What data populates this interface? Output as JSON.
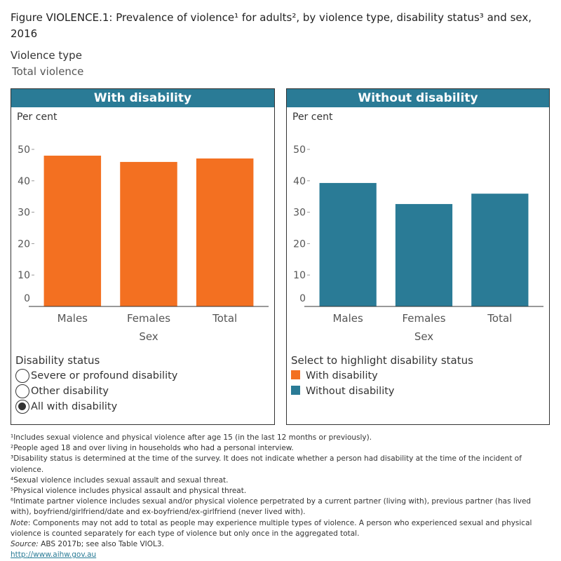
{
  "title": "Figure VIOLENCE.1: Prevalence of violence¹ for adults², by violence type, disability status³ and sex, 2016",
  "filter": {
    "label": "Violence type",
    "value": "Total violence"
  },
  "colors": {
    "with": "#f37021",
    "without": "#2a7b96"
  },
  "chart_data": [
    {
      "type": "bar",
      "title": "With disability",
      "ylabel": "Per cent",
      "xlabel": "Sex",
      "ylim": [
        0,
        50
      ],
      "yticks": [
        0,
        10,
        20,
        30,
        40,
        50
      ],
      "categories": [
        "Males",
        "Females",
        "Total"
      ],
      "values": [
        48.0,
        46.0,
        47.1
      ],
      "color": "#f37021"
    },
    {
      "type": "bar",
      "title": "Without disability",
      "ylabel": "Per cent",
      "xlabel": "Sex",
      "ylim": [
        0,
        50
      ],
      "yticks": [
        0,
        10,
        20,
        30,
        40,
        50
      ],
      "categories": [
        "Males",
        "Females",
        "Total"
      ],
      "values": [
        39.3,
        32.6,
        35.9
      ],
      "color": "#2a7b96"
    }
  ],
  "disability_status": {
    "label": "Disability status",
    "options": [
      "Severe or profound disability",
      "Other disability",
      "All with disability"
    ],
    "selected": 2
  },
  "highlight": {
    "label": "Select to highlight disability status",
    "items": [
      {
        "label": "With disability",
        "color": "#f37021"
      },
      {
        "label": "Without disability",
        "color": "#2a7b96"
      }
    ]
  },
  "notes": [
    "¹Includes sexual violence and physical violence after age 15 (in the last 12 months or previously).",
    "²People aged 18 and over living in households who had a personal interview.",
    "³Disability status is determined at the time of the survey. It does not indicate whether a person had disability at the time of the incident of violence.",
    "⁴Sexual violence includes sexual assault and sexual threat.",
    "⁵Physical violence includes physical assault and physical threat.",
    "⁶Intimate partner violence includes sexual and/or physical violence perpetrated by a current partner (living with), previous partner (has lived with), boyfriend/girlfriend/date and ex-boyfriend/ex-girlfriend (never lived with)."
  ],
  "note": {
    "label": "Note",
    "text": ": Components may not add to total as people may experience multiple types of violence. A person who experienced sexual and physical violence is counted separately for each type of violence but only once in the aggregated total."
  },
  "source": {
    "label": "Source:",
    "text": " ABS 2017b; see also Table VIOL3."
  },
  "link": "http://www.aihw.gov.au"
}
